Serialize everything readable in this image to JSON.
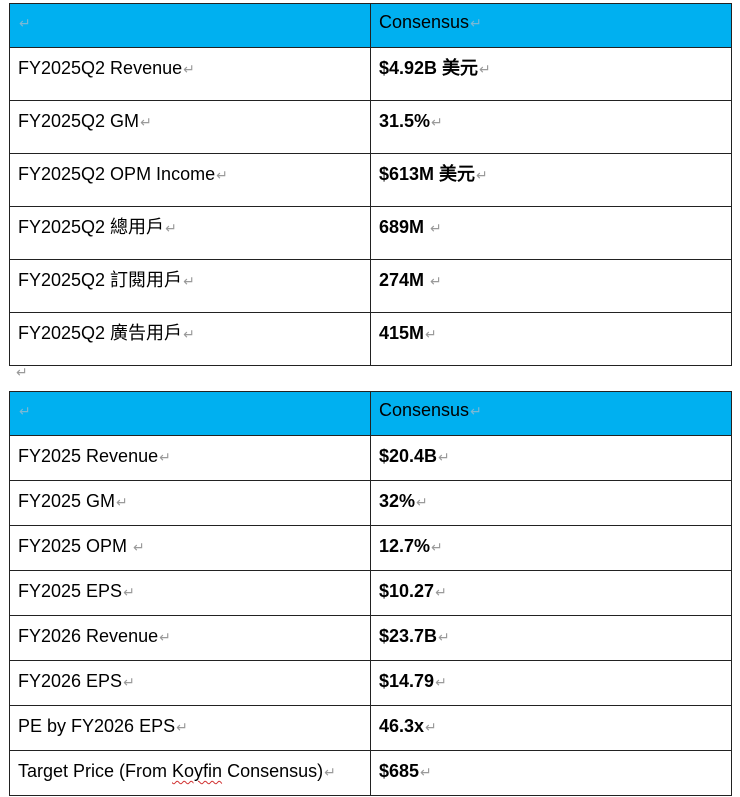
{
  "para_mark": "↵",
  "table1": {
    "header": {
      "metric": "",
      "consensus": "Consensus"
    },
    "rows": [
      {
        "label": "FY2025Q2 Revenue",
        "value": "$4.92B 美元"
      },
      {
        "label": "FY2025Q2 GM",
        "value": "31.5%"
      },
      {
        "label": "FY2025Q2 OPM Income",
        "value": "$613M 美元"
      },
      {
        "label": "FY2025Q2 總用戶",
        "value": "689M "
      },
      {
        "label": "FY2025Q2 訂閱用戶",
        "value": "274M "
      },
      {
        "label": "FY2025Q2 廣告用戶",
        "value": "415M"
      }
    ]
  },
  "table2": {
    "header": {
      "metric": "",
      "consensus": "Consensus"
    },
    "rows": [
      {
        "label": "FY2025 Revenue",
        "value": "$20.4B"
      },
      {
        "label": "FY2025 GM",
        "value": "32%"
      },
      {
        "label": "FY2025 OPM ",
        "value": "12.7%"
      },
      {
        "label": "FY2025 EPS",
        "value": "$10.27"
      },
      {
        "label": "FY2026 Revenue",
        "value": "$23.7B"
      },
      {
        "label": "FY2026 EPS",
        "value": "$14.79"
      },
      {
        "label": "PE by FY2026 EPS",
        "value": "46.3x"
      }
    ],
    "last_row": {
      "label_before": "Target Price (From ",
      "label_squiggle": "Koyfin",
      "label_after": " Consensus)",
      "value": "$685"
    }
  }
}
